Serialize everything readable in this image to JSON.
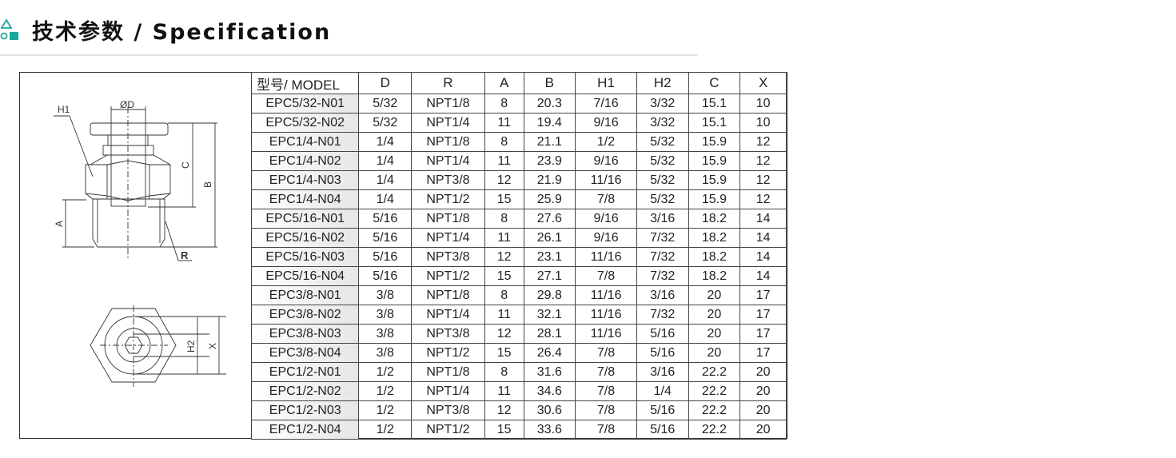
{
  "header": {
    "title": "技术参数 / Specification",
    "icon": "shapes-icon",
    "accent": "#1aa89c"
  },
  "drawing": {
    "labels": {
      "h1": "H1",
      "d": "ØD",
      "c": "C",
      "b": "B",
      "a": "A",
      "r": "R",
      "h2": "H2",
      "x": "X"
    }
  },
  "table": {
    "columns": [
      "型号/ MODEL",
      "D",
      "R",
      "A",
      "B",
      "H1",
      "H2",
      "C",
      "X"
    ],
    "rows": [
      [
        "EPC5/32-N01",
        "5/32",
        "NPT1/8",
        "8",
        "20.3",
        "7/16",
        "3/32",
        "15.1",
        "10"
      ],
      [
        "EPC5/32-N02",
        "5/32",
        "NPT1/4",
        "11",
        "19.4",
        "9/16",
        "3/32",
        "15.1",
        "10"
      ],
      [
        "EPC1/4-N01",
        "1/4",
        "NPT1/8",
        "8",
        "21.1",
        "1/2",
        "5/32",
        "15.9",
        "12"
      ],
      [
        "EPC1/4-N02",
        "1/4",
        "NPT1/4",
        "11",
        "23.9",
        "9/16",
        "5/32",
        "15.9",
        "12"
      ],
      [
        "EPC1/4-N03",
        "1/4",
        "NPT3/8",
        "12",
        "21.9",
        "11/16",
        "5/32",
        "15.9",
        "12"
      ],
      [
        "EPC1/4-N04",
        "1/4",
        "NPT1/2",
        "15",
        "25.9",
        "7/8",
        "5/32",
        "15.9",
        "12"
      ],
      [
        "EPC5/16-N01",
        "5/16",
        "NPT1/8",
        "8",
        "27.6",
        "9/16",
        "3/16",
        "18.2",
        "14"
      ],
      [
        "EPC5/16-N02",
        "5/16",
        "NPT1/4",
        "11",
        "26.1",
        "9/16",
        "7/32",
        "18.2",
        "14"
      ],
      [
        "EPC5/16-N03",
        "5/16",
        "NPT3/8",
        "12",
        "23.1",
        "11/16",
        "7/32",
        "18.2",
        "14"
      ],
      [
        "EPC5/16-N04",
        "5/16",
        "NPT1/2",
        "15",
        "27.1",
        "7/8",
        "7/32",
        "18.2",
        "14"
      ],
      [
        "EPC3/8-N01",
        "3/8",
        "NPT1/8",
        "8",
        "29.8",
        "11/16",
        "3/16",
        "20",
        "17"
      ],
      [
        "EPC3/8-N02",
        "3/8",
        "NPT1/4",
        "11",
        "32.1",
        "11/16",
        "7/32",
        "20",
        "17"
      ],
      [
        "EPC3/8-N03",
        "3/8",
        "NPT3/8",
        "12",
        "28.1",
        "11/16",
        "5/16",
        "20",
        "17"
      ],
      [
        "EPC3/8-N04",
        "3/8",
        "NPT1/2",
        "15",
        "26.4",
        "7/8",
        "5/16",
        "20",
        "17"
      ],
      [
        "EPC1/2-N01",
        "1/2",
        "NPT1/8",
        "8",
        "31.6",
        "7/8",
        "3/16",
        "22.2",
        "20"
      ],
      [
        "EPC1/2-N02",
        "1/2",
        "NPT1/4",
        "11",
        "34.6",
        "7/8",
        "1/4",
        "22.2",
        "20"
      ],
      [
        "EPC1/2-N03",
        "1/2",
        "NPT3/8",
        "12",
        "30.6",
        "7/8",
        "5/16",
        "22.2",
        "20"
      ],
      [
        "EPC1/2-N04",
        "1/2",
        "NPT1/2",
        "15",
        "33.6",
        "7/8",
        "5/16",
        "22.2",
        "20"
      ]
    ]
  }
}
